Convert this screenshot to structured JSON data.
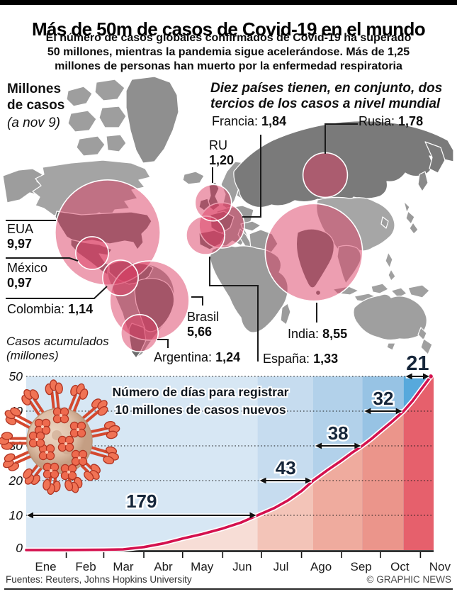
{
  "header": {
    "title": "Más de 50m de casos de Covid-19 en el mundo",
    "subtitle": "El número de casos globales confirmados de Covid-19 ha superado\n50 millones, mientras la pandemia sigue acelerándose. Más de 1,25\nmillones de personas han muerto por la enfermedad respiratoria"
  },
  "map": {
    "legend_title": "Millones\nde casos",
    "legend_date": "(a nov 9)",
    "note": "Diez países tienen, en conjunto, dos\ntercios de los casos a nivel mundial",
    "labels": {
      "eua": {
        "name": "EUA",
        "value": "9,97"
      },
      "mexico": {
        "name": "México",
        "value": "0,97"
      },
      "colombia": {
        "name": "Colombia:",
        "value": "1,14"
      },
      "brasil": {
        "name": "Brasil",
        "value": "5,66"
      },
      "argentina": {
        "name": "Argentina:",
        "value": "1,24"
      },
      "francia": {
        "name": "Francia:",
        "value": "1,84"
      },
      "ru": {
        "name": "RU",
        "value": "1,20"
      },
      "rusia": {
        "name": "Rusia:",
        "value": "1,78"
      },
      "espana": {
        "name": "España:",
        "value": "1,33"
      },
      "india": {
        "name": "India:",
        "value": "8,55"
      }
    }
  },
  "chart": {
    "ylabel": "Casos acumulados\n(millones)"
  },
  "icons": {
    "virus": "coronavirus-particle-illustration"
  },
  "chart_data": [
    {
      "type": "bubble-map",
      "title": "Millones de casos (a nov 9)",
      "note": "Diez países tienen, en conjunto, dos tercios de los casos a nivel mundial",
      "unit": "millones de casos confirmados",
      "points": [
        {
          "country": "EUA",
          "value": 9.97
        },
        {
          "country": "México",
          "value": 0.97
        },
        {
          "country": "Colombia",
          "value": 1.14
        },
        {
          "country": "Brasil",
          "value": 5.66
        },
        {
          "country": "Argentina",
          "value": 1.24
        },
        {
          "country": "RU",
          "value": 1.2
        },
        {
          "country": "Francia",
          "value": 1.84
        },
        {
          "country": "España",
          "value": 1.33
        },
        {
          "country": "Rusia",
          "value": 1.78
        },
        {
          "country": "India",
          "value": 8.55
        }
      ]
    },
    {
      "type": "area",
      "title": "Casos acumulados (millones)",
      "annotation": "Número de días para registrar\n10 millones de casos nuevos",
      "x_months": [
        "Ene",
        "Feb",
        "Mar",
        "Abr",
        "May",
        "Jun",
        "Jul",
        "Ago",
        "Sep",
        "Oct",
        "Nov"
      ],
      "month_start_days": [
        0,
        31,
        60,
        91,
        121,
        152,
        182,
        213,
        244,
        274,
        305
      ],
      "total_days": 313,
      "ylim": [
        0,
        50
      ],
      "y_ticks": [
        0,
        10,
        20,
        30,
        40,
        50
      ],
      "series": [
        {
          "name": "casos acumulados (millones)",
          "points": [
            [
              0,
              0
            ],
            [
              31,
              0.03
            ],
            [
              60,
              0.09
            ],
            [
              75,
              0.2
            ],
            [
              91,
              0.86
            ],
            [
              106,
              1.9
            ],
            [
              121,
              3.3
            ],
            [
              136,
              4.6
            ],
            [
              152,
              6.2
            ],
            [
              166,
              7.9
            ],
            [
              179,
              10
            ],
            [
              192,
              12.1
            ],
            [
              203,
              14.4
            ],
            [
              213,
              17
            ],
            [
              222,
              20
            ],
            [
              233,
              23
            ],
            [
              244,
              25.8
            ],
            [
              252,
              28
            ],
            [
              260,
              30
            ],
            [
              267,
              32
            ],
            [
              274,
              34.2
            ],
            [
              283,
              37
            ],
            [
              292,
              40
            ],
            [
              299,
              43
            ],
            [
              305,
              46
            ],
            [
              309,
              48
            ],
            [
              313,
              50
            ]
          ]
        }
      ],
      "milestones": [
        {
          "label": "179",
          "millions": 10
        },
        {
          "label": "43",
          "millions": 20
        },
        {
          "label": "38",
          "millions": 30
        },
        {
          "label": "32",
          "millions": 40
        },
        {
          "label": "21",
          "millions": 50
        }
      ],
      "colors": {
        "curve": "#d4114e",
        "bands_above": [
          "#d7e7f4",
          "#c6dcef",
          "#b2d1ea",
          "#97c3e4",
          "#57a9dc"
        ],
        "bands_below": [
          "#f7ddd6",
          "#f3c4b8",
          "#efab9e",
          "#eb958b",
          "#e6606c"
        ],
        "number_color": "#16263a"
      }
    }
  ],
  "footer": {
    "sources": "Fuentes: Reuters, Johns Hopkins University",
    "credit": "© GRAPHIC NEWS"
  }
}
